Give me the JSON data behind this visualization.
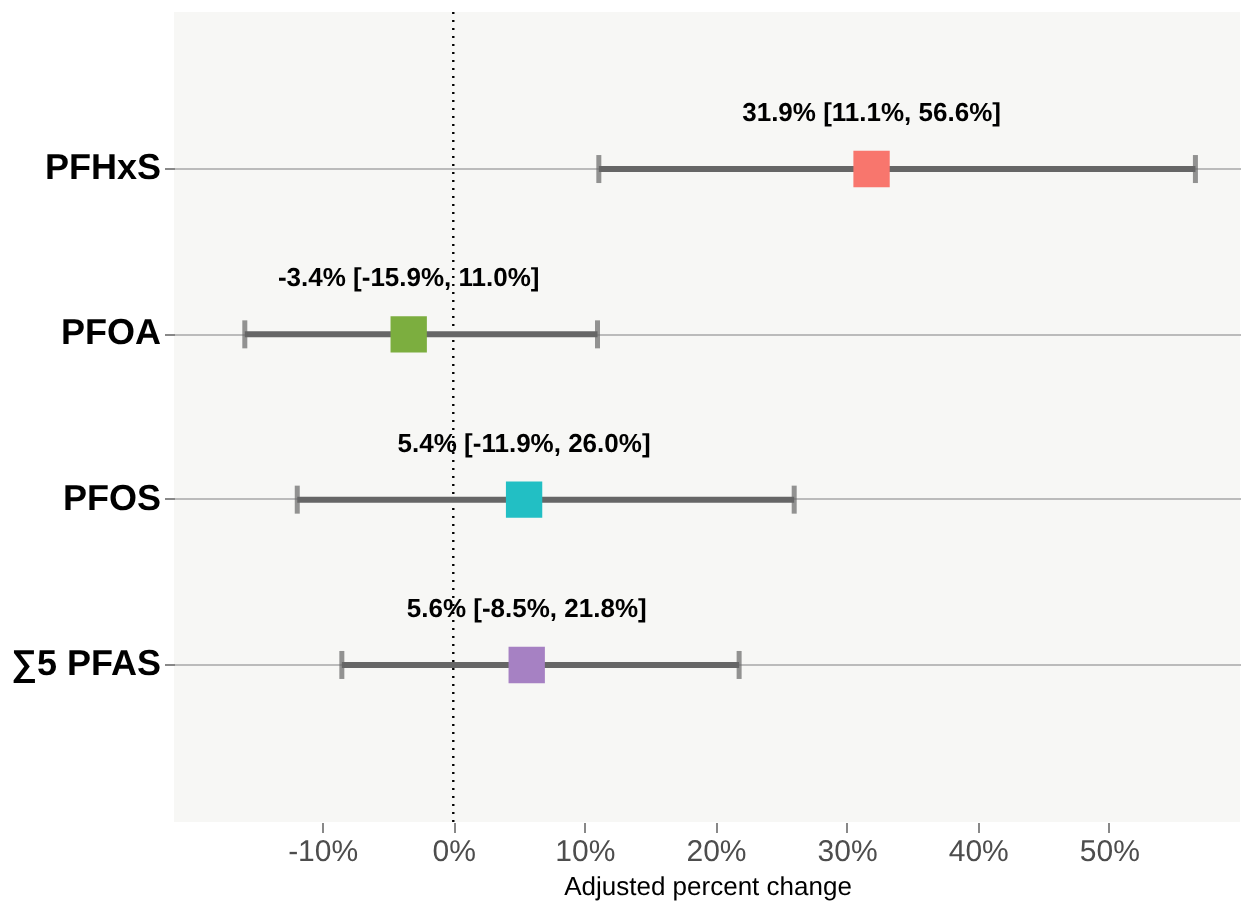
{
  "chart_data": {
    "type": "scatter",
    "orientation": "horizontal",
    "marker": "square",
    "categories": [
      "PFHxS",
      "PFOA",
      "PFOS",
      "∑5 PFAS"
    ],
    "values": [
      31.9,
      -3.4,
      5.4,
      5.6
    ],
    "errors": [
      [
        11.1,
        56.6
      ],
      [
        -15.9,
        11.0
      ],
      [
        -11.9,
        26.0
      ],
      [
        -8.5,
        21.8
      ]
    ],
    "colors": [
      "#f8766d",
      "#7cae3f",
      "#22bfc4",
      "#a681c3"
    ],
    "value_labels": [
      "31.9% [11.1%, 56.6%]",
      "-3.4% [-15.9%, 11.0%]",
      "5.4% [-11.9%, 26.0%]",
      "5.6% [-8.5%, 21.8%]"
    ],
    "xlabel": "Adjusted percent change",
    "xlim": [
      -21.3,
      60
    ],
    "xticks": [
      {
        "value": -10,
        "label": "-10%"
      },
      {
        "value": 0,
        "label": "0%"
      },
      {
        "value": 10,
        "label": "10%"
      },
      {
        "value": 20,
        "label": "20%"
      },
      {
        "value": 30,
        "label": "30%"
      },
      {
        "value": 40,
        "label": "40%"
      },
      {
        "value": 50,
        "label": "50%"
      }
    ],
    "ref_lines": [
      {
        "axis": "x",
        "value": 0,
        "line_style": "dotted",
        "color": "#000000"
      }
    ],
    "grid": "y"
  }
}
